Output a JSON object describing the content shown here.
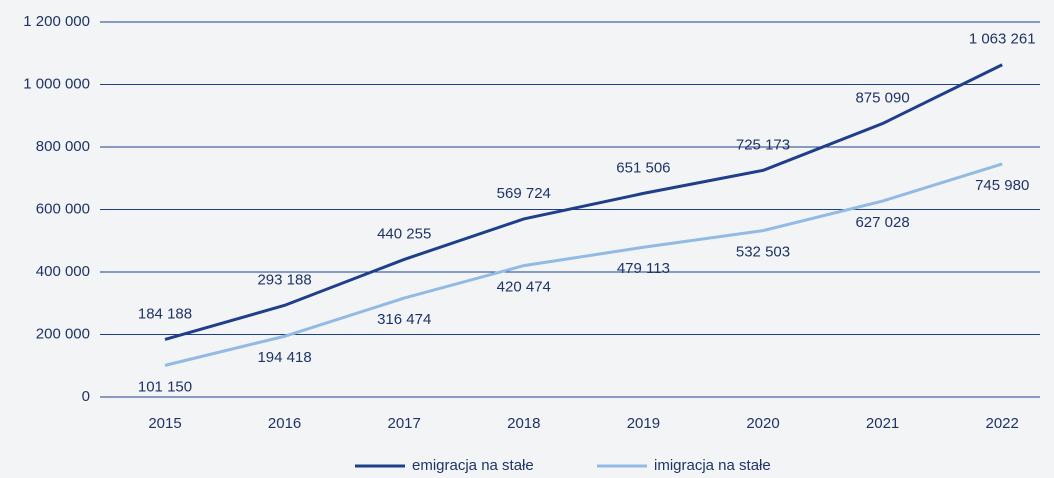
{
  "chart_data": {
    "type": "line",
    "categories": [
      "2015",
      "2016",
      "2017",
      "2018",
      "2019",
      "2020",
      "2021",
      "2022"
    ],
    "series": [
      {
        "name": "emigracja na stałe",
        "color": "#1f3f8a",
        "values": [
          184188,
          293188,
          440255,
          569724,
          651506,
          725173,
          875090,
          1063261
        ],
        "value_labels": [
          "184 188",
          "293 188",
          "440 255",
          "569 724",
          "651 506",
          "725 173",
          "875 090",
          "1 063 261"
        ]
      },
      {
        "name": "imigracja na stałe",
        "color": "#92bbe3",
        "values": [
          101150,
          194418,
          316474,
          420474,
          479113,
          532503,
          627028,
          745980
        ],
        "value_labels": [
          "101 150",
          "194 418",
          "316 474",
          "420 474",
          "479 113",
          "532 503",
          "627 028",
          "745 980"
        ]
      }
    ],
    "ylim": [
      0,
      1200000
    ],
    "yticks": [
      0,
      {
        "value": 200000,
        "label": "200 000"
      },
      {
        "value": 400000,
        "label": "400 000"
      },
      {
        "value": 600000,
        "label": "600 000"
      },
      {
        "value": 800000,
        "label": "800 000"
      },
      {
        "value": 1000000,
        "label": "1 000 000"
      },
      {
        "value": 1200000,
        "label": "1 200 000"
      }
    ],
    "grid": true,
    "legend": "bottom"
  }
}
